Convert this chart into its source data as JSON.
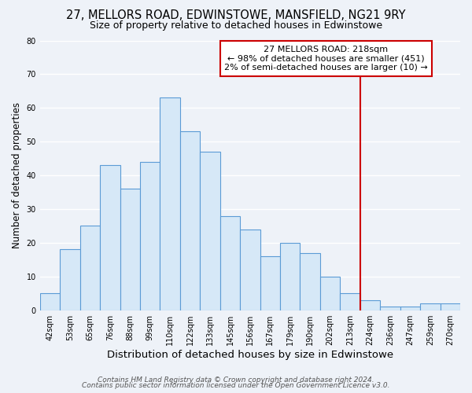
{
  "title": "27, MELLORS ROAD, EDWINSTOWE, MANSFIELD, NG21 9RY",
  "subtitle": "Size of property relative to detached houses in Edwinstowe",
  "xlabel": "Distribution of detached houses by size in Edwinstowe",
  "ylabel": "Number of detached properties",
  "categories": [
    "42sqm",
    "53sqm",
    "65sqm",
    "76sqm",
    "88sqm",
    "99sqm",
    "110sqm",
    "122sqm",
    "133sqm",
    "145sqm",
    "156sqm",
    "167sqm",
    "179sqm",
    "190sqm",
    "202sqm",
    "213sqm",
    "224sqm",
    "236sqm",
    "247sqm",
    "259sqm",
    "270sqm"
  ],
  "values": [
    5,
    18,
    25,
    43,
    36,
    44,
    63,
    53,
    47,
    28,
    24,
    16,
    20,
    17,
    10,
    5,
    3,
    1,
    1,
    2,
    2
  ],
  "bar_color": "#d6e8f7",
  "bar_edge_color": "#5b9bd5",
  "vline_x": 15.5,
  "vline_color": "#cc0000",
  "annotation_title": "27 MELLORS ROAD: 218sqm",
  "annotation_line1": "← 98% of detached houses are smaller (451)",
  "annotation_line2": "2% of semi-detached houses are larger (10) →",
  "annotation_box_color": "#ffffff",
  "annotation_box_edge": "#cc0000",
  "footer_line1": "Contains HM Land Registry data © Crown copyright and database right 2024.",
  "footer_line2": "Contains public sector information licensed under the Open Government Licence v3.0.",
  "ylim": [
    0,
    80
  ],
  "yticks": [
    0,
    10,
    20,
    30,
    40,
    50,
    60,
    70,
    80
  ],
  "background_color": "#eef2f8",
  "grid_color": "#ffffff",
  "title_fontsize": 10.5,
  "subtitle_fontsize": 9,
  "xlabel_fontsize": 9.5,
  "ylabel_fontsize": 8.5,
  "tick_fontsize": 7,
  "footer_fontsize": 6.5,
  "annot_fontsize": 8
}
